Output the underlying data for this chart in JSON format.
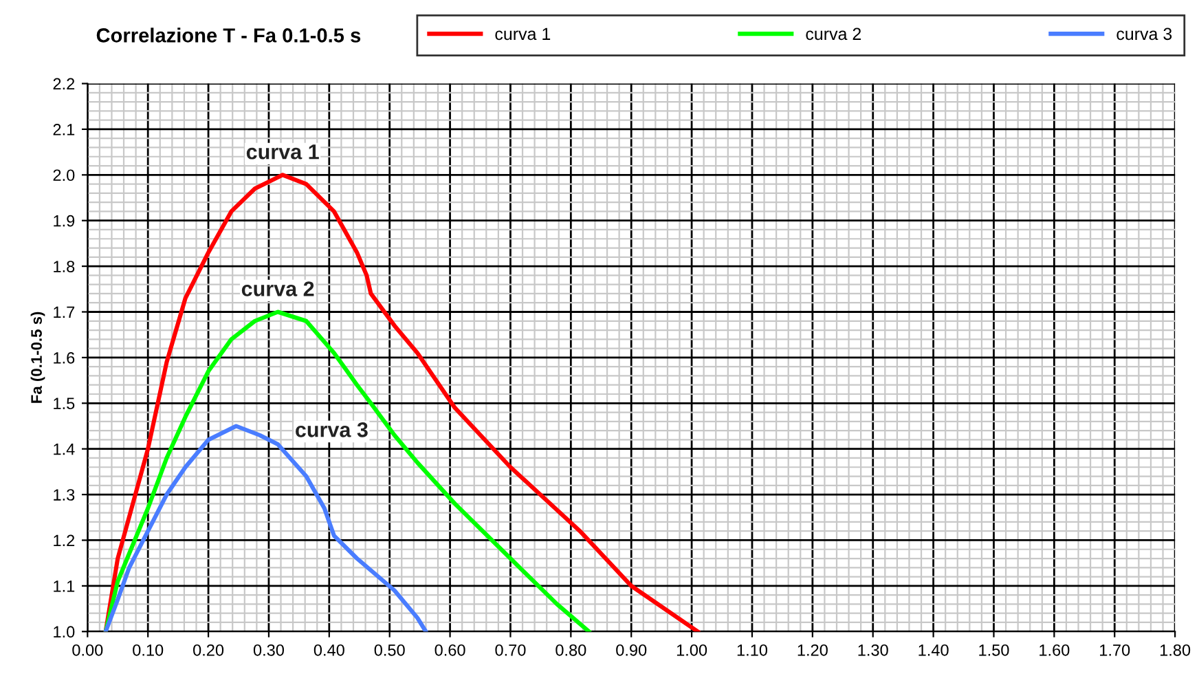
{
  "chart_data": {
    "type": "line",
    "title": "Correlazione T - Fa 0.1-0.5 s",
    "ylabel": "Fa (0.1-0.5 s)",
    "xlim": [
      0,
      1.8
    ],
    "xticks": [
      {
        "value": 0,
        "label": "0.00"
      },
      {
        "value": 0.1,
        "label": "0.10"
      },
      {
        "value": 0.2,
        "label": "0.20"
      },
      {
        "value": 0.3,
        "label": "0.30"
      },
      {
        "value": 0.4,
        "label": "0.40"
      },
      {
        "value": 0.5,
        "label": "0.50"
      },
      {
        "value": 0.6,
        "label": "0.60"
      },
      {
        "value": 0.7,
        "label": "0.70"
      },
      {
        "value": 0.8,
        "label": "0.80"
      },
      {
        "value": 0.9,
        "label": "0.90"
      },
      {
        "value": 1.0,
        "label": "1.00"
      },
      {
        "value": 1.1,
        "label": "1.10"
      },
      {
        "value": 1.2,
        "label": "1.20"
      },
      {
        "value": 1.3,
        "label": "1.30"
      },
      {
        "value": 1.4,
        "label": "1.40"
      },
      {
        "value": 1.5,
        "label": "1.50"
      },
      {
        "value": 1.6,
        "label": "1.60"
      },
      {
        "value": 1.7,
        "label": "1.70"
      },
      {
        "value": 1.8,
        "label": "1.80"
      }
    ],
    "ylim": [
      1.0,
      2.2
    ],
    "yticks": [
      {
        "value": 1.0,
        "label": "1.0"
      },
      1.1,
      1.2,
      1.3,
      1.4,
      1.5,
      1.6,
      1.7,
      1.8,
      1.9,
      {
        "value": 2.0,
        "label": "2.0"
      },
      2.1,
      2.2
    ],
    "grid": true,
    "legend": "top right",
    "marker": "none",
    "line_style": "solid",
    "series": [
      {
        "name": "curva 1",
        "color": "#ff0000",
        "x": [
          0.03,
          0.05,
          0.1,
          0.131,
          0.162,
          0.2,
          0.238,
          0.277,
          0.323,
          0.362,
          0.408,
          0.446,
          0.462,
          0.469,
          0.508,
          0.546,
          0.608,
          0.7,
          0.815,
          0.9,
          1.01
        ],
        "values": [
          1.0,
          1.16,
          1.4,
          1.59,
          1.73,
          1.83,
          1.92,
          1.97,
          2.0,
          1.98,
          1.92,
          1.83,
          1.78,
          1.74,
          1.67,
          1.61,
          1.49,
          1.36,
          1.22,
          1.1,
          1.0
        ]
      },
      {
        "name": "curva 2",
        "color": "#00ff00",
        "x": [
          0.03,
          0.05,
          0.1,
          0.131,
          0.162,
          0.2,
          0.238,
          0.277,
          0.315,
          0.362,
          0.408,
          0.446,
          0.469,
          0.508,
          0.546,
          0.608,
          0.7,
          0.777,
          0.83
        ],
        "values": [
          1.0,
          1.11,
          1.27,
          1.38,
          1.47,
          1.57,
          1.64,
          1.68,
          1.7,
          1.68,
          1.61,
          1.54,
          1.5,
          1.43,
          1.37,
          1.28,
          1.16,
          1.06,
          1.0
        ]
      },
      {
        "name": "curva 3",
        "color": "#4a7dff",
        "x": [
          0.03,
          0.05,
          0.069,
          0.1,
          0.131,
          0.162,
          0.2,
          0.246,
          0.285,
          0.315,
          0.362,
          0.392,
          0.408,
          0.446,
          0.508,
          0.546,
          0.56
        ],
        "values": [
          1.0,
          1.07,
          1.14,
          1.22,
          1.3,
          1.36,
          1.42,
          1.45,
          1.43,
          1.41,
          1.34,
          1.27,
          1.21,
          1.16,
          1.09,
          1.03,
          1.0
        ]
      }
    ],
    "annotations": [
      "curva 1",
      "curva 2",
      "curva 3"
    ]
  }
}
